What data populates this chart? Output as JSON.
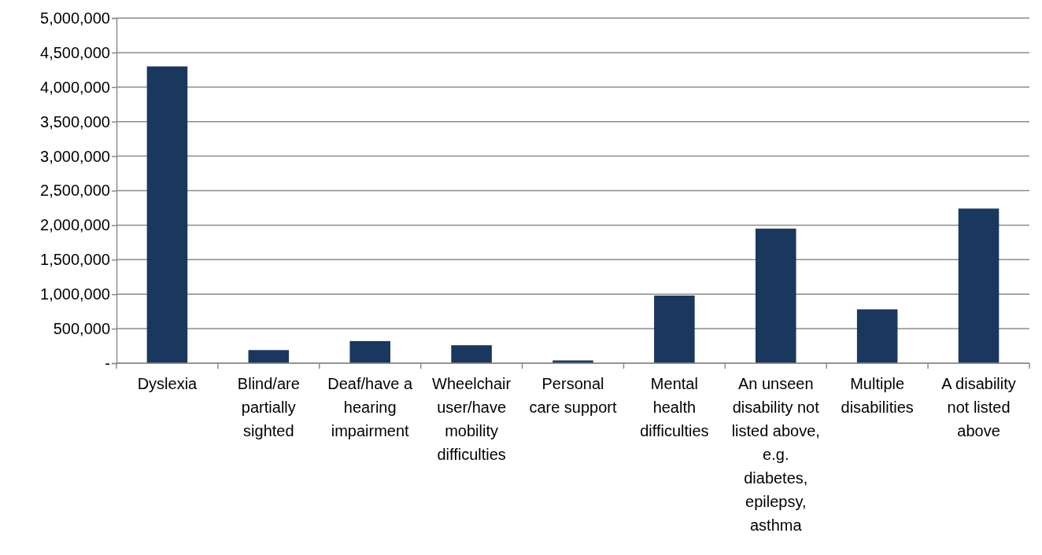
{
  "chart_data": {
    "type": "bar",
    "categories": [
      "Dyslexia",
      "Blind/are partially sighted",
      "Deaf/have a hearing impairment",
      "Wheelchair user/have mobility difficulties",
      "Personal care support",
      "Mental health difficulties",
      "An unseen disability not listed above, e.g. diabetes, epilepsy, asthma",
      "Multiple disabilities",
      "A disability not listed above"
    ],
    "values": [
      4300000,
      190000,
      320000,
      260000,
      40000,
      980000,
      1950000,
      780000,
      2240000
    ],
    "color": "#1a375e",
    "ylim": [
      0,
      5000000
    ],
    "yticks": [
      {
        "value": 0,
        "label": "-"
      },
      {
        "value": 500000,
        "label": "500,000"
      },
      {
        "value": 1000000,
        "label": "1,000,000"
      },
      {
        "value": 1500000,
        "label": "1,500,000"
      },
      {
        "value": 2000000,
        "label": "2,000,000"
      },
      {
        "value": 2500000,
        "label": "2,500,000"
      },
      {
        "value": 3000000,
        "label": "3,000,000"
      },
      {
        "value": 3500000,
        "label": "3,500,000"
      },
      {
        "value": 4000000,
        "label": "4,000,000"
      },
      {
        "value": 4500000,
        "label": "4,500,000"
      },
      {
        "value": 5000000,
        "label": "5,000,000"
      }
    ],
    "grid": "y"
  }
}
